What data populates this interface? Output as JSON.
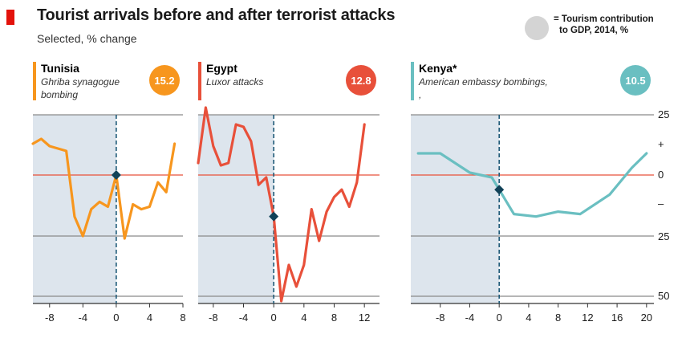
{
  "title": "Tourist arrivals before and after terrorist attacks",
  "subtitle": "Selected, % change",
  "legend": {
    "line1": "= Tourism contribution",
    "line2": "to GDP, 2014, %",
    "marker_color": "#d4d4d4"
  },
  "colors": {
    "shade": "#dde5ed",
    "zero_line": "#e8503a",
    "grid": "#8a8a8a",
    "event_line": "#1f5a78",
    "marker": "#114258",
    "brand": "#e3120b"
  },
  "chart_data": [
    {
      "type": "line",
      "title": "Tunisia",
      "subtitle_lines": [
        "Ghriba synagogue",
        "bombing"
      ],
      "gdp_contribution": "15.2",
      "color": "#f7961e",
      "xlim": [
        -10,
        8
      ],
      "ylim": [
        -50,
        25
      ],
      "xticks": [
        -8,
        -4,
        0,
        4,
        8
      ],
      "xticklabels": [
        "-8",
        "-4",
        "0",
        "4",
        "8"
      ],
      "event_x": 0,
      "event_y": 0,
      "x": [
        -10,
        -9,
        -8,
        -7,
        -6,
        -5,
        -4,
        -3,
        -2,
        -1,
        0,
        1,
        2,
        3,
        4,
        5,
        6,
        7
      ],
      "y": [
        13,
        15,
        12,
        11,
        10,
        -17,
        -25,
        -14,
        -11,
        -13,
        0,
        -26,
        -12,
        -14,
        -13,
        -3,
        -7,
        13
      ]
    },
    {
      "type": "line",
      "title": "Egypt",
      "subtitle_lines": [
        "Luxor attacks"
      ],
      "gdp_contribution": "12.8",
      "color": "#e8503a",
      "xlim": [
        -10,
        14
      ],
      "ylim": [
        -50,
        25
      ],
      "xticks": [
        -8,
        -4,
        0,
        4,
        8,
        12
      ],
      "xticklabels": [
        "-8",
        "-4",
        "0",
        "4",
        "8",
        "12"
      ],
      "event_x": 0,
      "event_y": -17,
      "x": [
        -10,
        -9,
        -8,
        -7,
        -6,
        -5,
        -4,
        -3,
        -2,
        -1,
        0,
        1,
        2,
        3,
        4,
        5,
        6,
        7,
        8,
        9,
        10,
        11,
        12
      ],
      "y": [
        5,
        28,
        12,
        4,
        5,
        21,
        20,
        14,
        -4,
        -1,
        -17,
        -52,
        -37,
        -46,
        -37,
        -14,
        -27,
        -15,
        -9,
        -6,
        -13,
        -3,
        21
      ]
    },
    {
      "type": "line",
      "title": "Kenya*",
      "subtitle_lines": [
        "American embassy bombings,",
        ","
      ],
      "gdp_contribution": "10.5",
      "color": "#6abfc1",
      "xlim": [
        -12,
        21
      ],
      "ylim": [
        -50,
        25
      ],
      "xticks": [
        -8,
        -4,
        0,
        4,
        8,
        12,
        16,
        20
      ],
      "xticklabels": [
        "-8",
        "-4",
        "0",
        "4",
        "8",
        "12",
        "16",
        "20"
      ],
      "event_x": 0,
      "event_y": -6,
      "x": [
        -11,
        -8,
        -4,
        -1,
        0,
        2,
        5,
        8,
        11,
        15,
        18,
        20
      ],
      "y": [
        9,
        9,
        1,
        -1,
        -6,
        -16,
        -17,
        -15,
        -16,
        -8,
        3,
        9
      ]
    }
  ],
  "y_axis": {
    "ticks": [
      25,
      12.5,
      0,
      -12.5,
      -25,
      -50
    ],
    "labels": [
      "25",
      "+",
      "0",
      "–",
      "25",
      "50"
    ]
  }
}
